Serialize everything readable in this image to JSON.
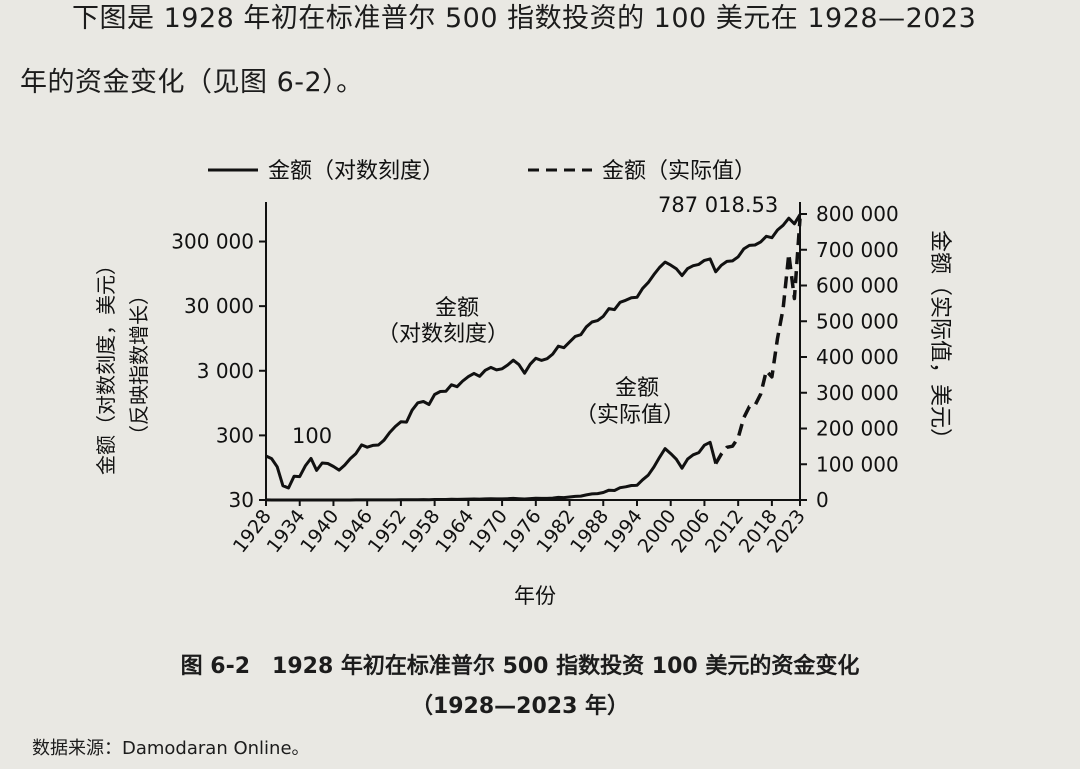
{
  "intro": {
    "line1": "下图是 1928 年初在标准普尔 500 指数投资的 100 美元在 1928—2023",
    "line2": "年的资金变化（见图 6-2）。"
  },
  "figure": {
    "caption_line1": "图 6-2　1928 年初在标准普尔 500 指数投资 100 美元的资金变化",
    "caption_line2": "（1928—2023 年）",
    "source": "数据来源：Damodaran Online。"
  },
  "chart_data": {
    "type": "line",
    "xlabel": "年份",
    "ylabel_left_line1": "金额（对数刻度，美元）",
    "ylabel_left_line2": "（反映指数增长）",
    "ylabel_right": "金额（实际值，美元）",
    "legend": [
      {
        "label": "金额（对数刻度）",
        "style": "solid"
      },
      {
        "label": "金额（实际值）",
        "style": "dashed"
      }
    ],
    "xlim": [
      1928,
      2023
    ],
    "x_ticks": [
      "1928",
      "1934",
      "1940",
      "1946",
      "1952",
      "1958",
      "1964",
      "1970",
      "1976",
      "1982",
      "1988",
      "1994",
      "2000",
      "2006",
      "2012",
      "2018",
      "2023"
    ],
    "left_axis": {
      "scale": "log",
      "ylim": [
        30,
        800000
      ],
      "ticks": [
        "30",
        "300",
        "3 000",
        "30 000",
        "300 000"
      ]
    },
    "right_axis": {
      "scale": "linear",
      "ylim": [
        0,
        800000
      ],
      "ticks": [
        "0",
        "100 000",
        "200 000",
        "300 000",
        "400 000",
        "500 000",
        "600 000",
        "700 000",
        "800 000"
      ]
    },
    "annotations": [
      {
        "text": "100",
        "x": 1928,
        "y": 100
      },
      {
        "text": "787 018.53",
        "x": 2023,
        "y": 787018.53
      },
      {
        "text_line1": "金额",
        "text_line2": "（对数刻度）",
        "x": 1958,
        "y": 30000
      },
      {
        "text_line1": "金额",
        "text_line2": "（实际值）",
        "x": 1998,
        "y": 900
      }
    ],
    "series": [
      {
        "name": "金额（对数刻度）",
        "axis": "left",
        "style": "solid",
        "x": [
          1928,
          1929,
          1930,
          1931,
          1932,
          1933,
          1934,
          1935,
          1936,
          1937,
          1938,
          1939,
          1940,
          1941,
          1942,
          1943,
          1944,
          1945,
          1946,
          1947,
          1948,
          1949,
          1950,
          1951,
          1952,
          1953,
          1954,
          1955,
          1956,
          1957,
          1958,
          1959,
          1960,
          1961,
          1962,
          1963,
          1964,
          1965,
          1966,
          1967,
          1968,
          1969,
          1970,
          1971,
          1972,
          1973,
          1974,
          1975,
          1976,
          1977,
          1978,
          1979,
          1980,
          1981,
          1982,
          1983,
          1984,
          1985,
          1986,
          1987,
          1988,
          1989,
          1990,
          1991,
          1992,
          1993,
          1994,
          1995,
          1996,
          1997,
          1998,
          1999,
          2000,
          2001,
          2002,
          2003,
          2004,
          2005,
          2006,
          2007,
          2008,
          2009,
          2010,
          2011,
          2012,
          2013,
          2014,
          2015,
          2016,
          2017,
          2018,
          2019,
          2020,
          2021,
          2022,
          2023
        ],
        "values": [
          144,
          131,
          98,
          50,
          46,
          70,
          69,
          101,
          132,
          86,
          112,
          110,
          99,
          87,
          104,
          131,
          157,
          214,
          197,
          210,
          213,
          253,
          332,
          412,
          486,
          481,
          735,
          958,
          1002,
          901,
          1288,
          1433,
          1447,
          1819,
          1701,
          2084,
          2433,
          2727,
          2459,
          3055,
          3385,
          3098,
          3212,
          3687,
          4367,
          3742,
          2752,
          3784,
          4674,
          4344,
          4606,
          5432,
          7195,
          6823,
          8321,
          10193,
          10839,
          14353,
          17024,
          17904,
          20859,
          27457,
          26550,
          34404,
          36973,
          40570,
          41136,
          56415,
          69363,
          92310,
          119040,
          143913,
          129716,
          114042,
          88941,
          114299,
          126555,
          132670,
          153349,
          161473,
          101821,
          128433,
          147537,
          150629,
          174387,
          230318,
          261257,
          264852,
          296345,
          361035,
          344206,
          452032,
          535059,
          688362,
          563509,
          787018.53
        ]
      },
      {
        "name": "金额（实际值）",
        "axis": "right",
        "style": "dashed",
        "x_from": 2008,
        "x_to": 2023
      }
    ]
  }
}
